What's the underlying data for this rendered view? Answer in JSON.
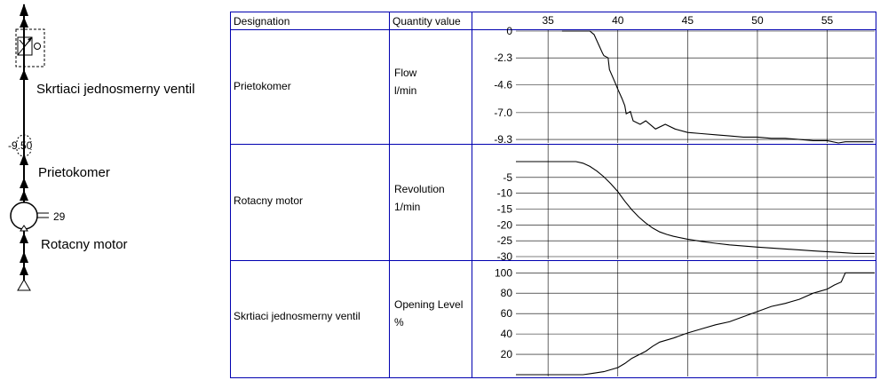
{
  "schematic": {
    "valve_label": "Skrtiaci jednosmerny ventil",
    "meter_label": "Prietokomer",
    "meter_value": "-9.50",
    "motor_label": "Rotacny motor",
    "motor_value": "29"
  },
  "table": {
    "header": {
      "designation": "Designation",
      "quantity": "Quantity value"
    },
    "rows": [
      {
        "designation": "Prietokomer",
        "quantity": "Flow",
        "unit": "l/min"
      },
      {
        "designation": "Rotacny motor",
        "quantity": "Revolution",
        "unit": "1/min"
      },
      {
        "designation": "Skrtiaci jednosmerny ventil",
        "quantity": "Opening Level",
        "unit": "%"
      }
    ]
  },
  "chart_data": [
    {
      "type": "line",
      "x_ticks": [
        35,
        40,
        45,
        50,
        55
      ],
      "xlim": [
        32.7,
        58.4
      ],
      "y_ticks": [
        0,
        -2.3,
        -4.6,
        -7.0,
        -9.3
      ],
      "ylim": [
        -9.6,
        0
      ],
      "grid": true,
      "series": [
        {
          "x": [
            36,
            37,
            38,
            38.3,
            38.9,
            39.0,
            39.3,
            39.4,
            39.8,
            40.0,
            40.3,
            40.5,
            40.6,
            40.9,
            41.1,
            41.6,
            42.0,
            42.7,
            43.4,
            44.1,
            45.0,
            46.0,
            47.0,
            48.0,
            49.0,
            50.0,
            51.0,
            52.0,
            53.0,
            54.0,
            55.0,
            55.8,
            56.3,
            57.0,
            58.3
          ],
          "y": [
            0,
            0,
            0,
            -0.3,
            -1.9,
            -2.1,
            -2.3,
            -3.3,
            -4.4,
            -5.0,
            -5.8,
            -6.4,
            -7.1,
            -6.9,
            -7.7,
            -8.0,
            -7.7,
            -8.4,
            -8.0,
            -8.4,
            -8.7,
            -8.8,
            -8.9,
            -9.0,
            -9.1,
            -9.1,
            -9.2,
            -9.2,
            -9.3,
            -9.4,
            -9.4,
            -9.6,
            -9.5,
            -9.5,
            -9.5
          ]
        }
      ]
    },
    {
      "type": "line",
      "x_ticks": [
        35,
        40,
        45,
        50,
        55
      ],
      "xlim": [
        32.7,
        58.4
      ],
      "y_ticks": [
        -5,
        -10,
        -15,
        -20,
        -25,
        -30
      ],
      "ylim": [
        -30,
        0
      ],
      "grid": true,
      "series": [
        {
          "x": [
            32.7,
            34.0,
            36.0,
            37.0,
            37.5,
            38.0,
            38.5,
            39.0,
            39.5,
            40.0,
            40.5,
            41.0,
            41.5,
            42.0,
            42.5,
            43.0,
            43.5,
            44.0,
            45.0,
            46.0,
            47.0,
            48.0,
            50.0,
            52.0,
            54.0,
            56.0,
            57.0,
            58.4
          ],
          "y": [
            0,
            0,
            0,
            0,
            -0.5,
            -1.5,
            -3.0,
            -4.8,
            -7.0,
            -9.5,
            -12.5,
            -15.2,
            -17.5,
            -19.4,
            -21.0,
            -22.2,
            -23.0,
            -23.6,
            -24.5,
            -25.2,
            -25.8,
            -26.3,
            -27.0,
            -27.6,
            -28.2,
            -28.7,
            -29.0,
            -29.0
          ]
        }
      ]
    },
    {
      "type": "line",
      "x_ticks": [
        35,
        40,
        45,
        50,
        55
      ],
      "xlim": [
        32.7,
        58.4
      ],
      "y_ticks": [
        20,
        40,
        60,
        80,
        100
      ],
      "ylim": [
        0,
        102
      ],
      "grid": true,
      "series": [
        {
          "x": [
            32.7,
            36.0,
            37.5,
            38.0,
            39.0,
            40.0,
            40.5,
            41.0,
            42.0,
            42.5,
            43.0,
            44.0,
            45.0,
            46.0,
            47.0,
            48.0,
            49.0,
            50.0,
            51.0,
            52.0,
            53.0,
            54.0,
            55.0,
            55.5,
            56.0,
            56.3,
            57.0,
            58.4
          ],
          "y": [
            0,
            0,
            0,
            1,
            3,
            7,
            11,
            16,
            23,
            28,
            32,
            36,
            41,
            45,
            49,
            52,
            57,
            62,
            67,
            70,
            74,
            80,
            84,
            88,
            91,
            100,
            100,
            100
          ]
        }
      ]
    }
  ]
}
